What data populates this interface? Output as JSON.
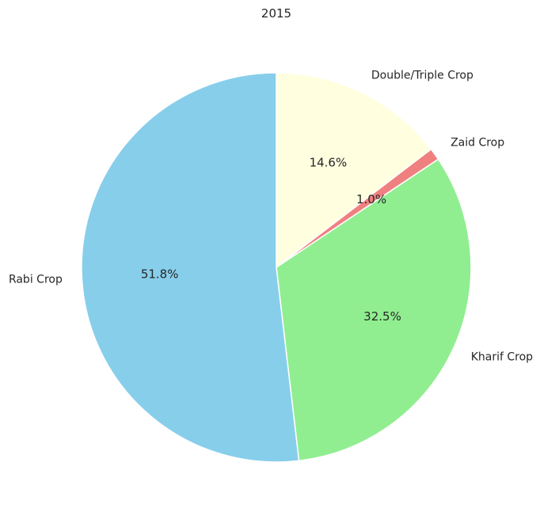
{
  "chart_data": {
    "type": "pie",
    "title": "2015",
    "start": "top, clockwise",
    "slices": [
      {
        "label": "Double/Triple Crop",
        "value": 14.6,
        "pct_label": "14.6%",
        "color": "#ffffe0"
      },
      {
        "label": "Zaid Crop",
        "value": 1.0,
        "pct_label": "1.0%",
        "color": "#f08080"
      },
      {
        "label": "Kharif Crop",
        "value": 32.5,
        "pct_label": "32.5%",
        "color": "#90ee90"
      },
      {
        "label": "Rabi Crop",
        "value": 51.8,
        "pct_label": "51.8%",
        "color": "#87ceeb"
      }
    ]
  }
}
